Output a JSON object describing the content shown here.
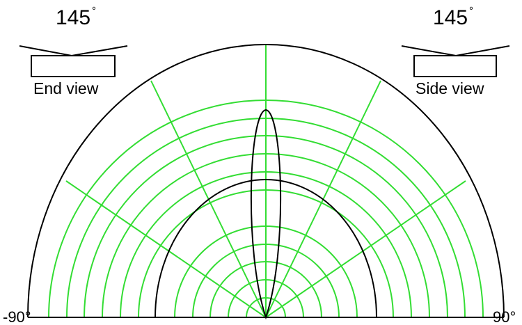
{
  "end_view": {
    "angle": "145",
    "degree_symbol": "°",
    "caption": "End view"
  },
  "side_view": {
    "angle": "145",
    "degree_symbol": "°",
    "caption": "Side view"
  },
  "axis": {
    "left_label": "-90°",
    "right_label": "90°"
  },
  "colors": {
    "grid": "#33dd33",
    "outline": "#000000",
    "background": "#ffffff"
  }
}
